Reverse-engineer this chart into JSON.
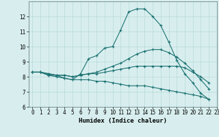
{
  "xlabel": "Humidex (Indice chaleur)",
  "bg_color": "#d8eeee",
  "grid_color": "#b8d8d8",
  "line_color": "#1a7070",
  "xlim": [
    -0.5,
    23
  ],
  "ylim": [
    6,
    13
  ],
  "yticks": [
    6,
    7,
    8,
    9,
    10,
    11,
    12
  ],
  "xticks": [
    0,
    1,
    2,
    3,
    4,
    5,
    6,
    7,
    8,
    9,
    10,
    11,
    12,
    13,
    14,
    15,
    16,
    17,
    18,
    19,
    20,
    21,
    22,
    23
  ],
  "series": [
    [
      8.3,
      8.3,
      8.1,
      8.1,
      7.9,
      7.8,
      8.2,
      9.2,
      9.4,
      9.9,
      10.0,
      11.1,
      12.3,
      12.5,
      12.5,
      12.0,
      11.4,
      10.3,
      9.1,
      8.2,
      7.6,
      6.9,
      6.5
    ],
    [
      8.3,
      8.3,
      8.2,
      8.1,
      8.1,
      8.0,
      8.1,
      8.2,
      8.2,
      8.3,
      8.4,
      8.5,
      8.6,
      8.7,
      8.7,
      8.7,
      8.7,
      8.7,
      8.7,
      8.6,
      8.3,
      8.0,
      7.6
    ],
    [
      8.3,
      8.3,
      8.1,
      8.0,
      7.9,
      7.8,
      7.8,
      7.8,
      7.7,
      7.7,
      7.6,
      7.5,
      7.4,
      7.4,
      7.4,
      7.3,
      7.2,
      7.1,
      7.0,
      6.9,
      6.8,
      6.7,
      6.5
    ],
    [
      8.3,
      8.3,
      8.2,
      8.1,
      8.1,
      8.0,
      8.1,
      8.2,
      8.3,
      8.5,
      8.7,
      8.9,
      9.2,
      9.5,
      9.7,
      9.8,
      9.8,
      9.6,
      9.3,
      8.9,
      8.4,
      7.8,
      7.2
    ]
  ]
}
